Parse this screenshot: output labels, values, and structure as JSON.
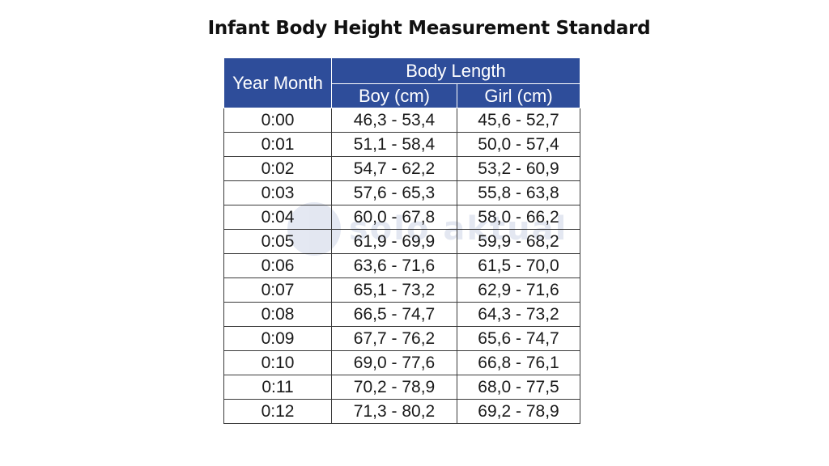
{
  "title": "Infant Body Height Measurement Standard",
  "watermark": "solo aktual",
  "table": {
    "header": {
      "year_month": "Year Month",
      "body_length": "Body Length",
      "boy": "Boy (cm)",
      "girl": "Girl (cm)"
    },
    "rows": [
      {
        "age": "0:00",
        "boy": "46,3 - 53,4",
        "girl": "45,6 - 52,7"
      },
      {
        "age": "0:01",
        "boy": "51,1 - 58,4",
        "girl": "50,0 - 57,4"
      },
      {
        "age": "0:02",
        "boy": "54,7 - 62,2",
        "girl": "53,2 - 60,9"
      },
      {
        "age": "0:03",
        "boy": "57,6 - 65,3",
        "girl": "55,8 - 63,8"
      },
      {
        "age": "0:04",
        "boy": "60,0 - 67,8",
        "girl": "58,0 - 66,2"
      },
      {
        "age": "0:05",
        "boy": "61,9 - 69,9",
        "girl": "59,9 - 68,2"
      },
      {
        "age": "0:06",
        "boy": "63,6 - 71,6",
        "girl": "61,5 - 70,0"
      },
      {
        "age": "0:07",
        "boy": "65,1 - 73,2",
        "girl": "62,9 - 71,6"
      },
      {
        "age": "0:08",
        "boy": "66,5 - 74,7",
        "girl": "64,3 - 73,2"
      },
      {
        "age": "0:09",
        "boy": "67,7 - 76,2",
        "girl": "65,6 - 74,7"
      },
      {
        "age": "0:10",
        "boy": "69,0 - 77,6",
        "girl": "66,8 - 76,1"
      },
      {
        "age": "0:11",
        "boy": "70,2 - 78,9",
        "girl": "68,0 - 77,5"
      },
      {
        "age": "0:12",
        "boy": "71,3 - 80,2",
        "girl": "69,2 - 78,9"
      }
    ]
  },
  "colors": {
    "header_bg": "#2e4d9a",
    "header_text": "#ffffff",
    "grid": "#3a3a3a"
  }
}
